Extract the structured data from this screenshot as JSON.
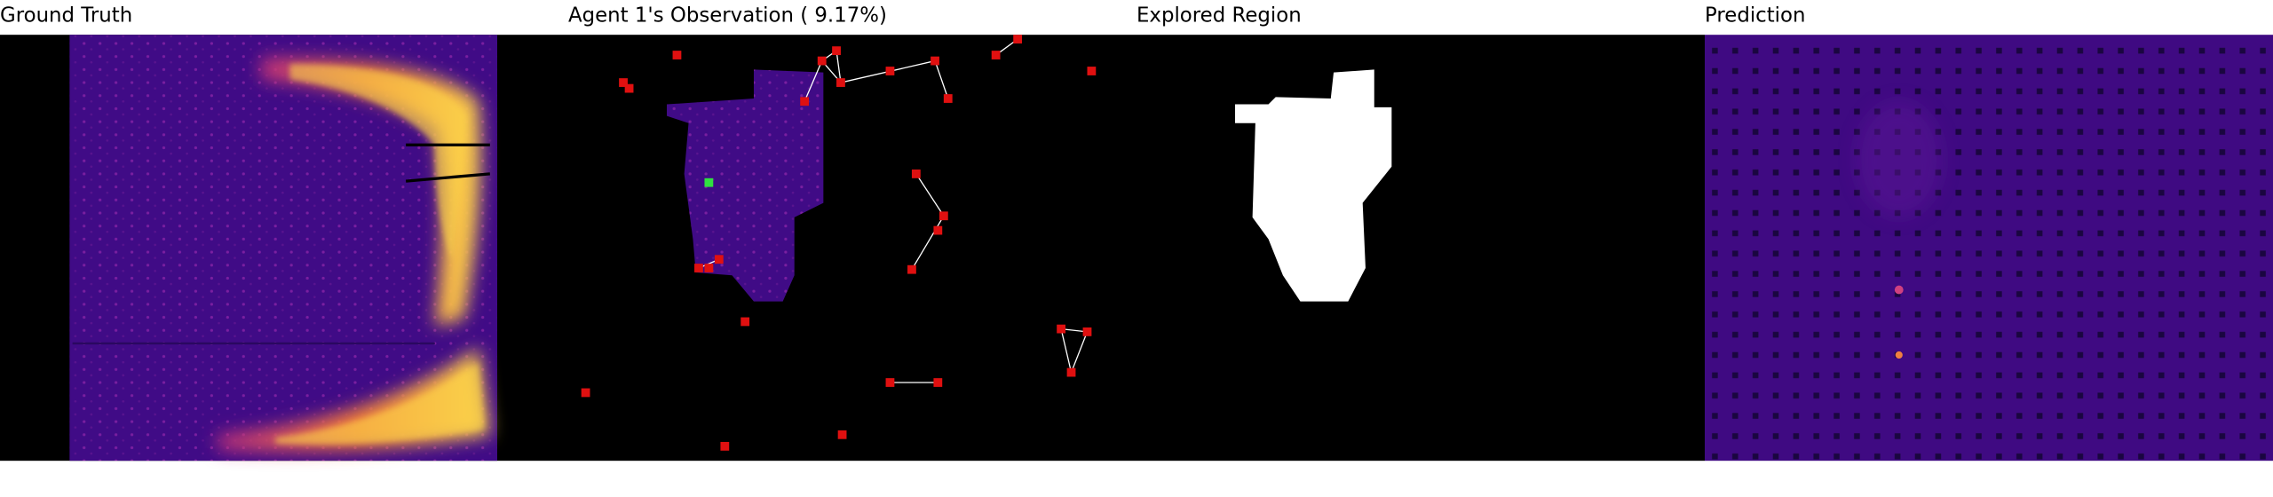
{
  "panels": [
    {
      "title": "Ground Truth"
    },
    {
      "title": "Agent 1's Observation ( 9.17%)"
    },
    {
      "title": "Explored Region"
    },
    {
      "title": "Prediction"
    }
  ]
}
